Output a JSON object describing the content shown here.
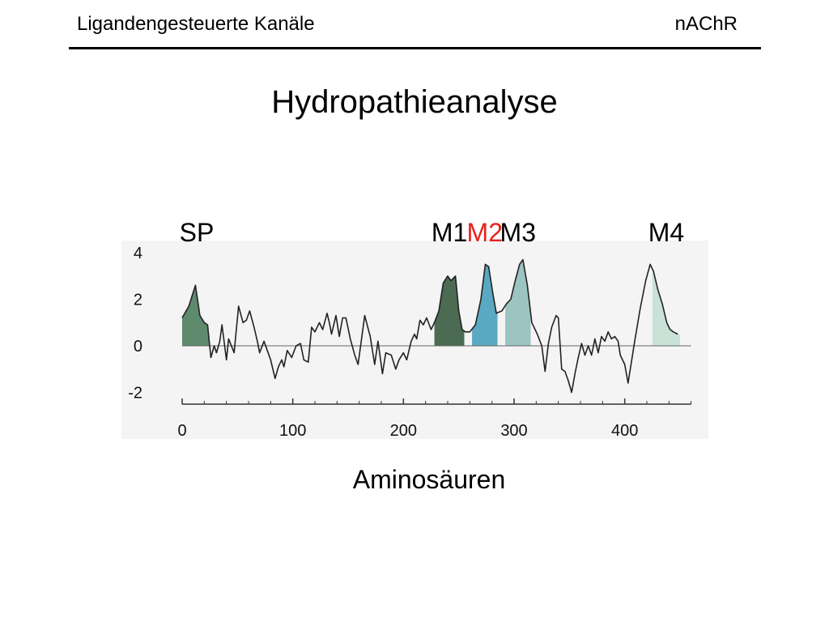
{
  "header": {
    "left": "Ligandengesteuerte Kanäle",
    "right": "nAChR"
  },
  "slide_title": "Hydropathieanalyse",
  "chart_data": {
    "type": "area",
    "xlabel": "Aminosäuren",
    "ylabel": "",
    "xlim": [
      0,
      460
    ],
    "ylim": [
      -2.5,
      4.3
    ],
    "xticks": [
      "0",
      "100",
      "200",
      "300",
      "400"
    ],
    "yticks": [
      "4",
      "2",
      "0",
      "-2"
    ],
    "grid": false,
    "colors": {
      "background": "#f4f4f4",
      "line": "#222222",
      "SP": "#5e8a6e",
      "M1": "#4b6b52",
      "M2": "#5aa9c2",
      "M3": "#9cc4c0",
      "M4": "#c9e2d8",
      "M2_label": "#e8211d"
    },
    "segments": [
      {
        "name": "SP",
        "start": 0,
        "end": 25
      },
      {
        "name": "M1",
        "start": 228,
        "end": 255
      },
      {
        "name": "M2",
        "start": 262,
        "end": 285
      },
      {
        "name": "M3",
        "start": 292,
        "end": 315
      },
      {
        "name": "M4",
        "start": 425,
        "end": 450
      }
    ],
    "series": [
      {
        "values": [
          [
            0,
            1.2
          ],
          [
            6,
            1.7
          ],
          [
            12,
            2.6
          ],
          [
            16,
            1.3
          ],
          [
            20,
            1.0
          ],
          [
            23,
            0.9
          ],
          [
            26,
            -0.5
          ],
          [
            29,
            0.0
          ],
          [
            31,
            -0.3
          ],
          [
            34,
            0.2
          ],
          [
            36,
            0.9
          ],
          [
            40,
            -0.6
          ],
          [
            42,
            0.3
          ],
          [
            47,
            -0.3
          ],
          [
            51,
            1.7
          ],
          [
            55,
            1.0
          ],
          [
            58,
            1.1
          ],
          [
            61,
            1.5
          ],
          [
            65,
            0.8
          ],
          [
            68,
            0.2
          ],
          [
            70,
            -0.3
          ],
          [
            74,
            0.2
          ],
          [
            80,
            -0.6
          ],
          [
            84,
            -1.4
          ],
          [
            87,
            -0.9
          ],
          [
            90,
            -0.6
          ],
          [
            92,
            -0.9
          ],
          [
            95,
            -0.2
          ],
          [
            99,
            -0.5
          ],
          [
            103,
            0.0
          ],
          [
            107,
            0.1
          ],
          [
            110,
            -0.6
          ],
          [
            114,
            -0.7
          ],
          [
            117,
            0.8
          ],
          [
            120,
            0.6
          ],
          [
            124,
            1.0
          ],
          [
            127,
            0.7
          ],
          [
            131,
            1.4
          ],
          [
            133,
            1.0
          ],
          [
            135,
            0.5
          ],
          [
            139,
            1.3
          ],
          [
            142,
            0.4
          ],
          [
            145,
            1.2
          ],
          [
            148,
            1.2
          ],
          [
            152,
            0.3
          ],
          [
            156,
            -0.4
          ],
          [
            159,
            -0.8
          ],
          [
            165,
            1.3
          ],
          [
            170,
            0.4
          ],
          [
            174,
            -0.8
          ],
          [
            177,
            0.2
          ],
          [
            181,
            -1.2
          ],
          [
            184,
            -0.3
          ],
          [
            189,
            -0.4
          ],
          [
            193,
            -1.0
          ],
          [
            196,
            -0.6
          ],
          [
            200,
            -0.3
          ],
          [
            203,
            -0.6
          ],
          [
            207,
            0.2
          ],
          [
            210,
            0.5
          ],
          [
            212,
            0.3
          ],
          [
            215,
            1.1
          ],
          [
            218,
            0.9
          ],
          [
            221,
            1.2
          ],
          [
            225,
            0.7
          ],
          [
            228,
            1.0
          ],
          [
            232,
            1.5
          ],
          [
            236,
            2.7
          ],
          [
            240,
            3.0
          ],
          [
            243,
            2.8
          ],
          [
            247,
            3.0
          ],
          [
            250,
            1.5
          ],
          [
            253,
            0.7
          ],
          [
            256,
            0.6
          ],
          [
            260,
            0.6
          ],
          [
            265,
            0.9
          ],
          [
            270,
            2.0
          ],
          [
            274,
            3.5
          ],
          [
            277,
            3.4
          ],
          [
            281,
            2.2
          ],
          [
            284,
            1.4
          ],
          [
            289,
            1.5
          ],
          [
            293,
            1.8
          ],
          [
            297,
            2.0
          ],
          [
            301,
            2.8
          ],
          [
            305,
            3.5
          ],
          [
            308,
            3.7
          ],
          [
            312,
            2.6
          ],
          [
            316,
            1.0
          ],
          [
            318,
            0.8
          ],
          [
            321,
            0.5
          ],
          [
            325,
            0.0
          ],
          [
            328,
            -1.1
          ],
          [
            331,
            0.1
          ],
          [
            334,
            0.8
          ],
          [
            338,
            1.3
          ],
          [
            340,
            1.2
          ],
          [
            343,
            -1.0
          ],
          [
            346,
            -1.1
          ],
          [
            349,
            -1.5
          ],
          [
            352,
            -2.0
          ],
          [
            355,
            -1.2
          ],
          [
            358,
            -0.5
          ],
          [
            361,
            0.1
          ],
          [
            364,
            -0.4
          ],
          [
            367,
            0.0
          ],
          [
            370,
            -0.4
          ],
          [
            373,
            0.3
          ],
          [
            376,
            -0.3
          ],
          [
            379,
            0.4
          ],
          [
            382,
            0.2
          ],
          [
            385,
            0.6
          ],
          [
            388,
            0.3
          ],
          [
            391,
            0.4
          ],
          [
            394,
            0.2
          ],
          [
            396,
            -0.4
          ],
          [
            400,
            -0.8
          ],
          [
            403,
            -1.6
          ],
          [
            406,
            -0.7
          ],
          [
            409,
            0.2
          ],
          [
            414,
            1.6
          ],
          [
            419,
            2.8
          ],
          [
            423,
            3.5
          ],
          [
            426,
            3.2
          ],
          [
            430,
            2.4
          ],
          [
            434,
            1.8
          ],
          [
            438,
            1.0
          ],
          [
            441,
            0.7
          ],
          [
            444,
            0.6
          ],
          [
            448,
            0.5
          ]
        ]
      }
    ]
  }
}
